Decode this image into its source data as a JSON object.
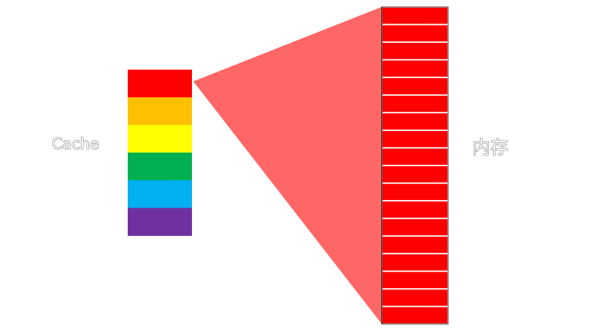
{
  "labels": {
    "cache": "Cache",
    "memory": "内存"
  },
  "cache": {
    "block_colors": [
      "#ff0000",
      "#ffc000",
      "#ffff00",
      "#00b050",
      "#00b0f0",
      "#7030a0"
    ]
  },
  "memory": {
    "block_count": 18,
    "block_color": "#ff0000"
  },
  "mapping": {
    "color": "#ff6666"
  }
}
